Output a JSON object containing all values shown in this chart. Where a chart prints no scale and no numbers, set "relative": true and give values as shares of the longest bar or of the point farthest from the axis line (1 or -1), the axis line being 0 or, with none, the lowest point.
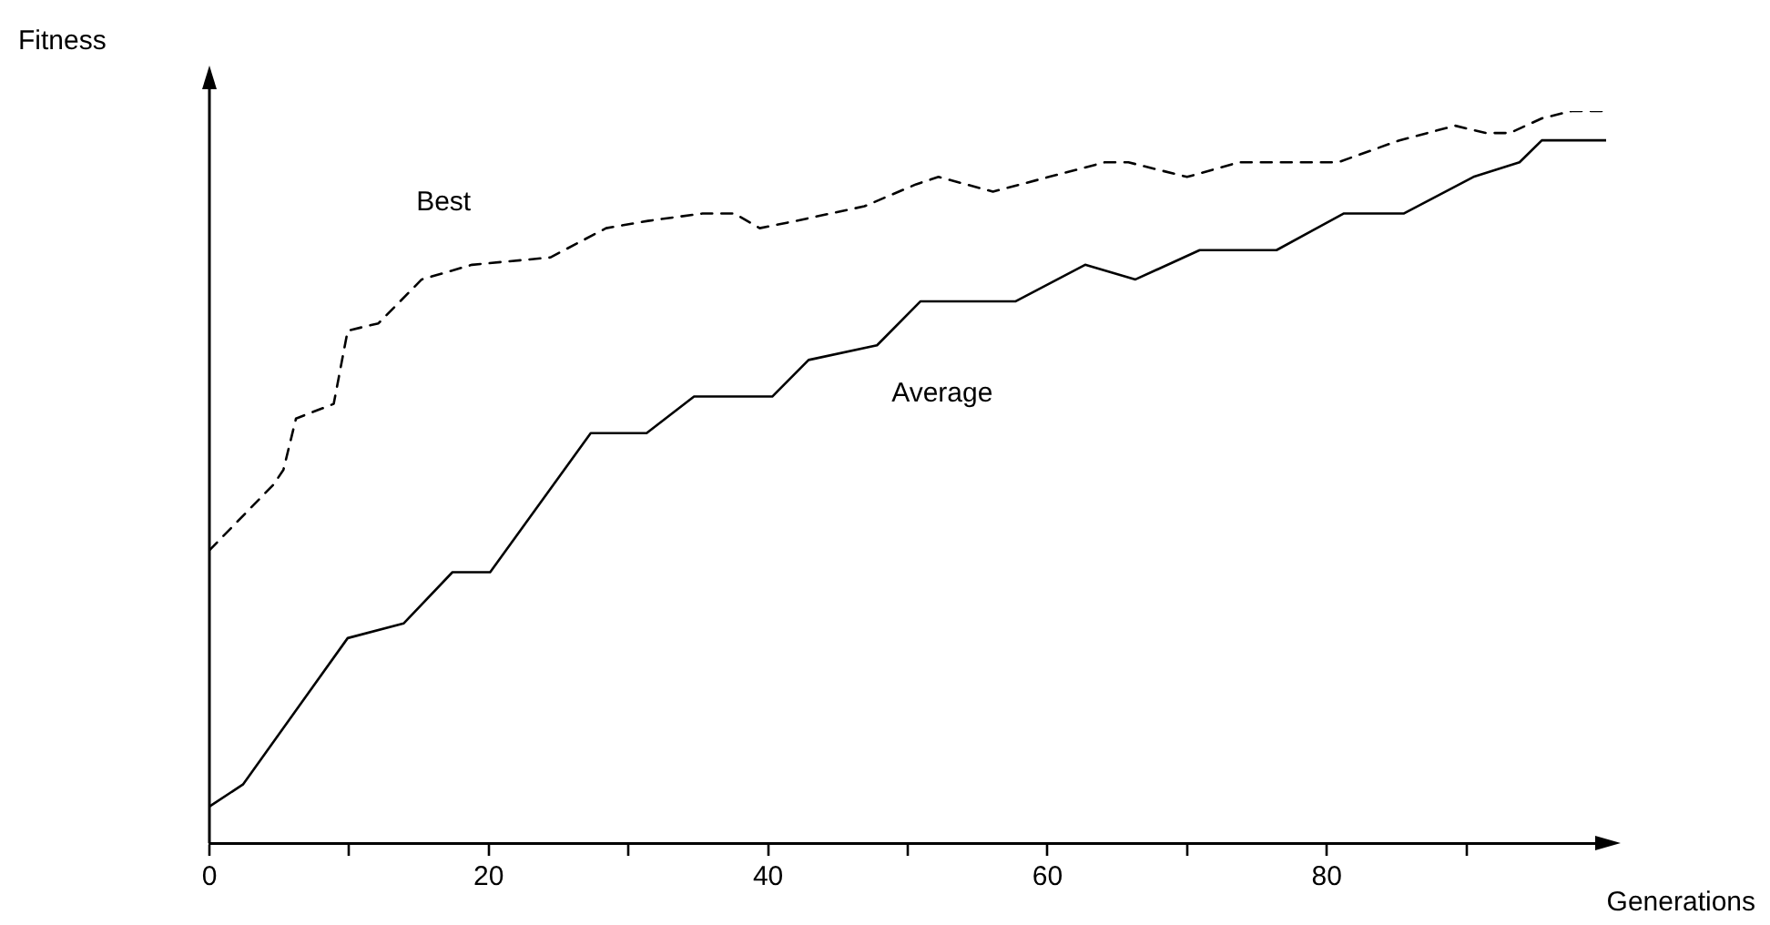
{
  "chart_data": {
    "type": "line",
    "xlabel": "Generations",
    "ylabel": "Fitness",
    "relative": true,
    "xlim": [
      0,
      100
    ],
    "xticks": [
      0,
      {
        "value": 10,
        "label": null
      },
      20,
      {
        "value": 30,
        "label": null
      },
      40,
      {
        "value": 50,
        "label": null
      },
      60,
      {
        "value": 70,
        "label": null
      },
      80,
      {
        "value": 90,
        "label": null
      }
    ],
    "grid": false,
    "legend": false,
    "marker": "none",
    "series": [
      {
        "name": "Best",
        "color": "#000000",
        "line_style": "dashed",
        "x": [
          0,
          4.6,
          5.3,
          6.2,
          8.9,
          9.9,
          12.1,
          15.2,
          18.8,
          24.4,
          28.4,
          31.4,
          35.3,
          37.6,
          39.4,
          42.0,
          46.9,
          50.6,
          52.2,
          56.1,
          60.1,
          64.1,
          65.8,
          70.0,
          73.7,
          80.8,
          85.2,
          89.2,
          91.4,
          93.1,
          95.4,
          97.5,
          99.7
        ],
        "values": [
          0.4,
          0.49,
          0.51,
          0.58,
          0.6,
          0.7,
          0.71,
          0.77,
          0.79,
          0.8,
          0.84,
          0.85,
          0.86,
          0.86,
          0.84,
          0.85,
          0.87,
          0.9,
          0.91,
          0.89,
          0.91,
          0.93,
          0.93,
          0.91,
          0.93,
          0.93,
          0.96,
          0.98,
          0.97,
          0.97,
          0.99,
          1.0,
          1.0
        ]
      },
      {
        "name": "Average",
        "color": "#000000",
        "line_style": "solid",
        "x": [
          0,
          2.4,
          9.9,
          13.9,
          17.4,
          20.1,
          27.3,
          31.3,
          34.7,
          40.3,
          42.9,
          47.8,
          50.9,
          57.7,
          62.7,
          66.3,
          70.9,
          76.4,
          81.2,
          85.5,
          90.5,
          93.8,
          95.4,
          100
        ],
        "values": [
          0.05,
          0.08,
          0.28,
          0.3,
          0.37,
          0.37,
          0.56,
          0.56,
          0.61,
          0.61,
          0.66,
          0.68,
          0.74,
          0.74,
          0.79,
          0.77,
          0.81,
          0.81,
          0.86,
          0.86,
          0.91,
          0.93,
          0.96,
          0.96
        ]
      }
    ]
  }
}
